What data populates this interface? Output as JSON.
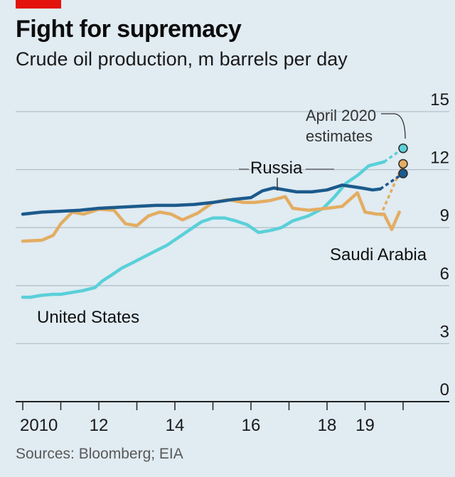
{
  "header": {
    "title": "Fight for supremacy",
    "subtitle": "Crude oil production, m barrels per day"
  },
  "footer": {
    "source": "Sources: Bloomberg; EIA"
  },
  "colors": {
    "background": "#e0ebf2",
    "accent_red": "#e3120b",
    "russia": "#1c5a8c",
    "saudi_arabia": "#e3ad62",
    "united_states": "#5ad0d8",
    "grid": "#b4c1ca"
  },
  "chart_data": {
    "type": "line",
    "title": "Fight for supremacy",
    "subtitle": "Crude oil production, m barrels per day",
    "xlabel": "",
    "ylabel": "m barrels per day",
    "xlim": [
      2009.9,
      2021.0
    ],
    "ylim": [
      0,
      15
    ],
    "yticks": [
      0,
      3,
      6,
      9,
      12,
      15
    ],
    "xticks": [
      {
        "value": 2010,
        "label": "2010"
      },
      {
        "value": 2011,
        "label": ""
      },
      {
        "value": 2012,
        "label": "12"
      },
      {
        "value": 2013,
        "label": ""
      },
      {
        "value": 2014,
        "label": "14"
      },
      {
        "value": 2015,
        "label": ""
      },
      {
        "value": 2016,
        "label": "16"
      },
      {
        "value": 2017,
        "label": ""
      },
      {
        "value": 2018,
        "label": "18"
      },
      {
        "value": 2019,
        "label": "19"
      },
      {
        "value": 2020,
        "label": ""
      }
    ],
    "grid": true,
    "series": [
      {
        "name": "Russia",
        "label": "Russia",
        "color": "#1c5a8c",
        "x": [
          2010.0,
          2010.5,
          2011.0,
          2011.5,
          2012.0,
          2012.5,
          2013.0,
          2013.5,
          2014.0,
          2014.5,
          2015.0,
          2015.5,
          2016.0,
          2016.3,
          2016.6,
          2016.9,
          2017.2,
          2017.6,
          2018.0,
          2018.4,
          2018.9,
          2019.2,
          2019.4
        ],
        "y": [
          9.7,
          9.8,
          9.85,
          9.9,
          10.0,
          10.05,
          10.1,
          10.15,
          10.15,
          10.2,
          10.3,
          10.45,
          10.55,
          10.9,
          11.05,
          10.95,
          10.85,
          10.85,
          10.95,
          11.2,
          11.05,
          10.95,
          11.0
        ],
        "estimate": {
          "x": [
            2019.4,
            2020.0
          ],
          "y": [
            11.0,
            11.8
          ]
        }
      },
      {
        "name": "Saudi Arabia",
        "label": "Saudi Arabia",
        "color": "#e3ad62",
        "x": [
          2010.0,
          2010.5,
          2010.8,
          2011.0,
          2011.3,
          2011.6,
          2012.0,
          2012.4,
          2012.7,
          2013.0,
          2013.3,
          2013.6,
          2013.9,
          2014.2,
          2014.6,
          2015.0,
          2015.4,
          2015.8,
          2016.1,
          2016.5,
          2016.9,
          2017.1,
          2017.5,
          2018.0,
          2018.4,
          2018.8,
          2019.0,
          2019.3,
          2019.5,
          2019.7,
          2019.9
        ],
        "y": [
          8.3,
          8.35,
          8.6,
          9.2,
          9.8,
          9.7,
          9.95,
          9.9,
          9.2,
          9.1,
          9.6,
          9.8,
          9.7,
          9.4,
          9.75,
          10.3,
          10.45,
          10.3,
          10.3,
          10.4,
          10.6,
          10.0,
          9.9,
          10.0,
          10.1,
          10.8,
          9.8,
          9.7,
          9.7,
          8.9,
          9.8
        ],
        "estimate": {
          "x": [
            2019.4,
            2020.0
          ],
          "y": [
            9.6,
            12.3
          ]
        }
      },
      {
        "name": "United States",
        "label": "United States",
        "color": "#5ad0d8",
        "x": [
          2010.0,
          2010.2,
          2010.5,
          2010.8,
          2011.0,
          2011.3,
          2011.6,
          2011.9,
          2012.1,
          2012.3,
          2012.6,
          2012.9,
          2013.2,
          2013.5,
          2013.8,
          2014.1,
          2014.4,
          2014.7,
          2015.0,
          2015.3,
          2015.6,
          2015.9,
          2016.2,
          2016.5,
          2016.8,
          2017.1,
          2017.5,
          2017.9,
          2018.2,
          2018.5,
          2018.8,
          2019.1,
          2019.3,
          2019.5
        ],
        "y": [
          5.4,
          5.4,
          5.5,
          5.55,
          5.55,
          5.65,
          5.75,
          5.9,
          6.25,
          6.5,
          6.9,
          7.2,
          7.5,
          7.8,
          8.1,
          8.5,
          8.9,
          9.3,
          9.5,
          9.5,
          9.35,
          9.15,
          8.75,
          8.85,
          9.0,
          9.35,
          9.6,
          10.0,
          10.6,
          11.3,
          11.7,
          12.2,
          12.3,
          12.4
        ]
      }
    ],
    "annotations": [
      {
        "text": "April 2020",
        "points_to": "2020 estimates"
      },
      {
        "text": "estimates",
        "points_to": "2020 estimates"
      }
    ],
    "estimate_markers": [
      {
        "series": "United States",
        "x": 2020.0,
        "y": 13.1
      },
      {
        "series": "Saudi Arabia",
        "x": 2020.0,
        "y": 12.3
      },
      {
        "series": "Russia",
        "x": 2020.0,
        "y": 11.8
      }
    ]
  }
}
